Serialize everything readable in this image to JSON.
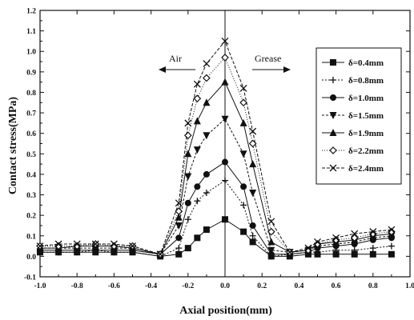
{
  "chart_data": {
    "type": "line",
    "xlabel": "Axial position(mm)",
    "ylabel": "Contact stress(MPa)",
    "xlim": [
      -1.0,
      1.0
    ],
    "ylim": [
      -0.1,
      1.2
    ],
    "xticks": [
      "-1.0",
      "-0.8",
      "-0.6",
      "-0.4",
      "-0.2",
      "0.0",
      "0.2",
      "0.4",
      "0.6",
      "0.8",
      "1.0"
    ],
    "yticks": [
      "-0.1",
      "0.0",
      "0.1",
      "0.2",
      "0.3",
      "0.4",
      "0.5",
      "0.6",
      "0.7",
      "0.8",
      "0.9",
      "1.0",
      "1.1",
      "1.2"
    ],
    "x": [
      -1.0,
      -0.9,
      -0.8,
      -0.7,
      -0.6,
      -0.5,
      -0.35,
      -0.25,
      -0.2,
      -0.15,
      -0.1,
      0.0,
      0.1,
      0.15,
      0.25,
      0.35,
      0.45,
      0.5,
      0.6,
      0.7,
      0.8,
      0.9
    ],
    "legend_position": "right",
    "annotations": [
      "Air",
      "Grease"
    ],
    "series": [
      {
        "name": "δ=0.4mm",
        "marker": "square",
        "values": [
          0.02,
          0.02,
          0.02,
          0.02,
          0.02,
          0.02,
          0.0,
          0.01,
          0.04,
          0.09,
          0.13,
          0.18,
          0.12,
          0.07,
          0.0,
          0.0,
          0.01,
          0.01,
          0.01,
          0.01,
          0.01,
          0.01
        ]
      },
      {
        "name": "δ=0.8mm",
        "marker": "plus",
        "values": [
          0.02,
          0.02,
          0.02,
          0.03,
          0.02,
          0.02,
          0.0,
          0.04,
          0.18,
          0.27,
          0.31,
          0.37,
          0.25,
          0.1,
          0.0,
          0.01,
          0.02,
          0.02,
          0.03,
          0.03,
          0.04,
          0.05
        ]
      },
      {
        "name": "δ=1.0mm",
        "marker": "circle",
        "values": [
          0.03,
          0.03,
          0.03,
          0.03,
          0.03,
          0.03,
          0.01,
          0.09,
          0.26,
          0.34,
          0.4,
          0.46,
          0.34,
          0.15,
          0.01,
          0.01,
          0.02,
          0.04,
          0.05,
          0.06,
          0.08,
          0.09
        ]
      },
      {
        "name": "δ=1.5mm",
        "marker": "triangle-down",
        "values": [
          0.04,
          0.04,
          0.04,
          0.04,
          0.04,
          0.04,
          0.01,
          0.15,
          0.39,
          0.52,
          0.59,
          0.67,
          0.5,
          0.31,
          0.03,
          0.02,
          0.03,
          0.05,
          0.06,
          0.07,
          0.09,
          0.1
        ]
      },
      {
        "name": "δ=1.9mm",
        "marker": "triangle-up",
        "values": [
          0.04,
          0.04,
          0.05,
          0.05,
          0.05,
          0.04,
          0.01,
          0.19,
          0.5,
          0.66,
          0.75,
          0.85,
          0.65,
          0.45,
          0.07,
          0.02,
          0.03,
          0.06,
          0.07,
          0.08,
          0.1,
          0.11
        ]
      },
      {
        "name": "δ=2.2mm",
        "marker": "diamond",
        "values": [
          0.05,
          0.05,
          0.05,
          0.06,
          0.05,
          0.05,
          0.01,
          0.22,
          0.59,
          0.77,
          0.87,
          0.97,
          0.75,
          0.55,
          0.12,
          0.02,
          0.03,
          0.06,
          0.08,
          0.09,
          0.11,
          0.12
        ]
      },
      {
        "name": "δ=2.4mm",
        "marker": "cross",
        "values": [
          0.05,
          0.06,
          0.06,
          0.06,
          0.06,
          0.05,
          0.01,
          0.26,
          0.65,
          0.84,
          0.94,
          1.05,
          0.82,
          0.61,
          0.17,
          0.02,
          0.04,
          0.07,
          0.09,
          0.11,
          0.12,
          0.13
        ]
      }
    ]
  }
}
